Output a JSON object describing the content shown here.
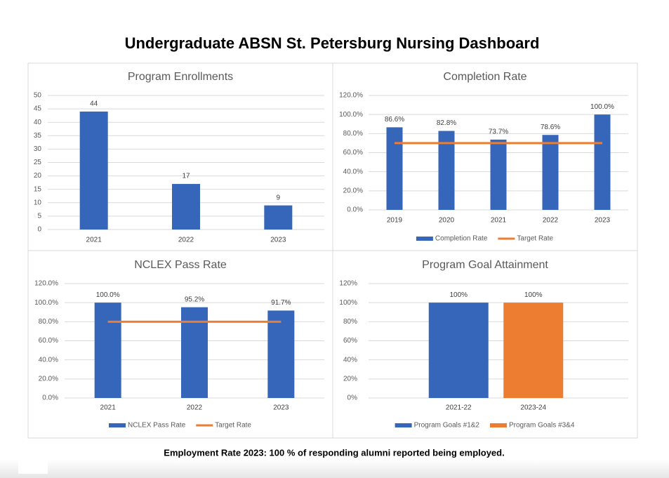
{
  "title": "Undergraduate ABSN St. Petersburg Nursing Dashboard",
  "chart_data": [
    {
      "type": "bar",
      "title": "Program Enrollments",
      "categories": [
        "2021",
        "2022",
        "2023"
      ],
      "values": [
        44,
        17,
        9
      ],
      "color": "#3566b9",
      "ylim": [
        0,
        50
      ],
      "yticks": [
        0,
        5,
        10,
        15,
        20,
        25,
        30,
        35,
        40,
        45,
        50
      ],
      "grid": true
    },
    {
      "type": "bar",
      "title": "Completion Rate",
      "categories": [
        "2019",
        "2020",
        "2021",
        "2022",
        "2023"
      ],
      "series": [
        {
          "name": "Completion Rate",
          "type": "bar",
          "color": "#3566b9",
          "values": [
            86.6,
            82.8,
            73.7,
            78.6,
            100
          ],
          "value_labels": [
            "86.6%",
            "82.8%",
            "73.7%",
            "78.6%",
            "100.0%"
          ]
        },
        {
          "name": "Target Rate",
          "type": "line",
          "color": "#ed7d31",
          "values": [
            70,
            70,
            70,
            70,
            70
          ]
        }
      ],
      "ylim": [
        0,
        120
      ],
      "yticks": [
        {
          "value": 0,
          "label": "0.0%"
        },
        {
          "value": 20,
          "label": "20.0%"
        },
        {
          "value": 40,
          "label": "40.0%"
        },
        {
          "value": 60,
          "label": "60.0%"
        },
        {
          "value": 80,
          "label": "80.0%"
        },
        {
          "value": 100,
          "label": "100.0%"
        },
        {
          "value": 120,
          "label": "120.0%"
        }
      ],
      "grid": true
    },
    {
      "type": "bar",
      "title": "NCLEX Pass Rate",
      "categories": [
        "2021",
        "2022",
        "2023"
      ],
      "series": [
        {
          "name": "NCLEX Pass Rate",
          "type": "bar",
          "color": "#3566b9",
          "values": [
            100,
            95.2,
            91.7
          ],
          "value_labels": [
            "100.0%",
            "95.2%",
            "91.7%"
          ]
        },
        {
          "name": "Target Rate",
          "type": "line",
          "color": "#ed7d31",
          "values": [
            80,
            80,
            80
          ]
        }
      ],
      "ylim": [
        0,
        120
      ],
      "yticks": [
        {
          "value": 0,
          "label": "0.0%"
        },
        {
          "value": 20,
          "label": "20.0%"
        },
        {
          "value": 40,
          "label": "40.0%"
        },
        {
          "value": 60,
          "label": "60.0%"
        },
        {
          "value": 80,
          "label": "80.0%"
        },
        {
          "value": 100,
          "label": "100.0%"
        },
        {
          "value": 120,
          "label": "120.0%"
        }
      ],
      "grid": true
    },
    {
      "type": "bar",
      "title": "Program Goal Attainment",
      "categories": [
        "2021-22",
        "2023-24"
      ],
      "series": [
        {
          "name": "Program Goals #1&2",
          "type": "bar",
          "color": "#3566b9",
          "values": [
            100,
            null
          ],
          "value_labels": [
            "100%",
            null
          ]
        },
        {
          "name": "Program Goals #3&4",
          "type": "bar",
          "color": "#ed7d31",
          "values": [
            null,
            100
          ],
          "value_labels": [
            null,
            "100%"
          ]
        }
      ],
      "ylim": [
        0,
        120
      ],
      "yticks": [
        {
          "value": 0,
          "label": "0%"
        },
        {
          "value": 20,
          "label": "20%"
        },
        {
          "value": 40,
          "label": "40%"
        },
        {
          "value": 60,
          "label": "60%"
        },
        {
          "value": 80,
          "label": "80%"
        },
        {
          "value": 100,
          "label": "100%"
        },
        {
          "value": 120,
          "label": "120%"
        }
      ],
      "grid": true
    }
  ],
  "footer": "Employment Rate 2023: 100 % of  responding alumni reported being employed."
}
